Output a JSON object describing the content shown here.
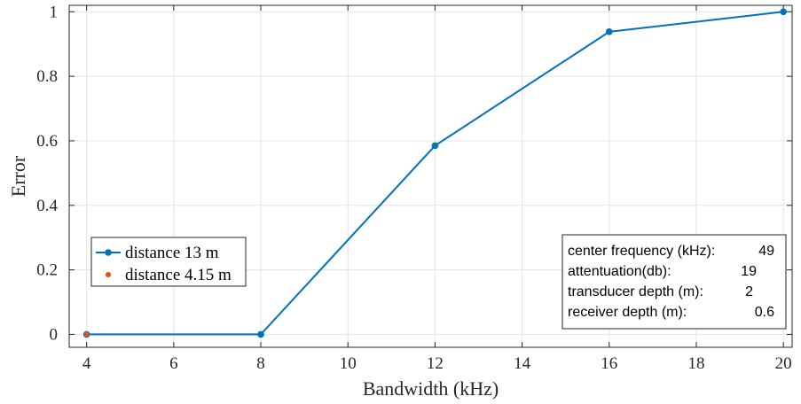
{
  "chart_data": {
    "type": "line",
    "xlabel": "Bandwidth (kHz)",
    "ylabel": "Error",
    "xlim": [
      3.6,
      20.2
    ],
    "ylim": [
      -0.04,
      1.02
    ],
    "xticks": [
      4,
      6,
      8,
      10,
      12,
      14,
      16,
      18,
      20
    ],
    "xtick_labels": [
      "4",
      "6",
      "8",
      "10",
      "12",
      "14",
      "16",
      "18",
      "20"
    ],
    "yticks": [
      0,
      0.2,
      0.4,
      0.6,
      0.8,
      1
    ],
    "ytick_labels": [
      "0",
      "0.2",
      "0.4",
      "0.6",
      "0.8",
      "1"
    ],
    "grid": true,
    "legend_position": "middle-left",
    "series": [
      {
        "name": "distance 13 m",
        "color": "#0072BD",
        "style": "line-marker",
        "x": [
          4,
          8,
          12,
          16,
          20
        ],
        "y": [
          0,
          0,
          0.585,
          0.938,
          1.0
        ]
      },
      {
        "name": "distance 4.15 m",
        "color": "#D95319",
        "style": "marker",
        "x": [
          4
        ],
        "y": [
          0
        ]
      }
    ]
  },
  "info_box": {
    "position": "bottom-right",
    "rows": [
      {
        "label": "center frequency (kHz):",
        "value": "49"
      },
      {
        "label": "attentuation(db):",
        "value": "19"
      },
      {
        "label": "transducer depth (m):",
        "value": "2"
      },
      {
        "label": "receiver depth (m):",
        "value": "0.6"
      }
    ]
  }
}
